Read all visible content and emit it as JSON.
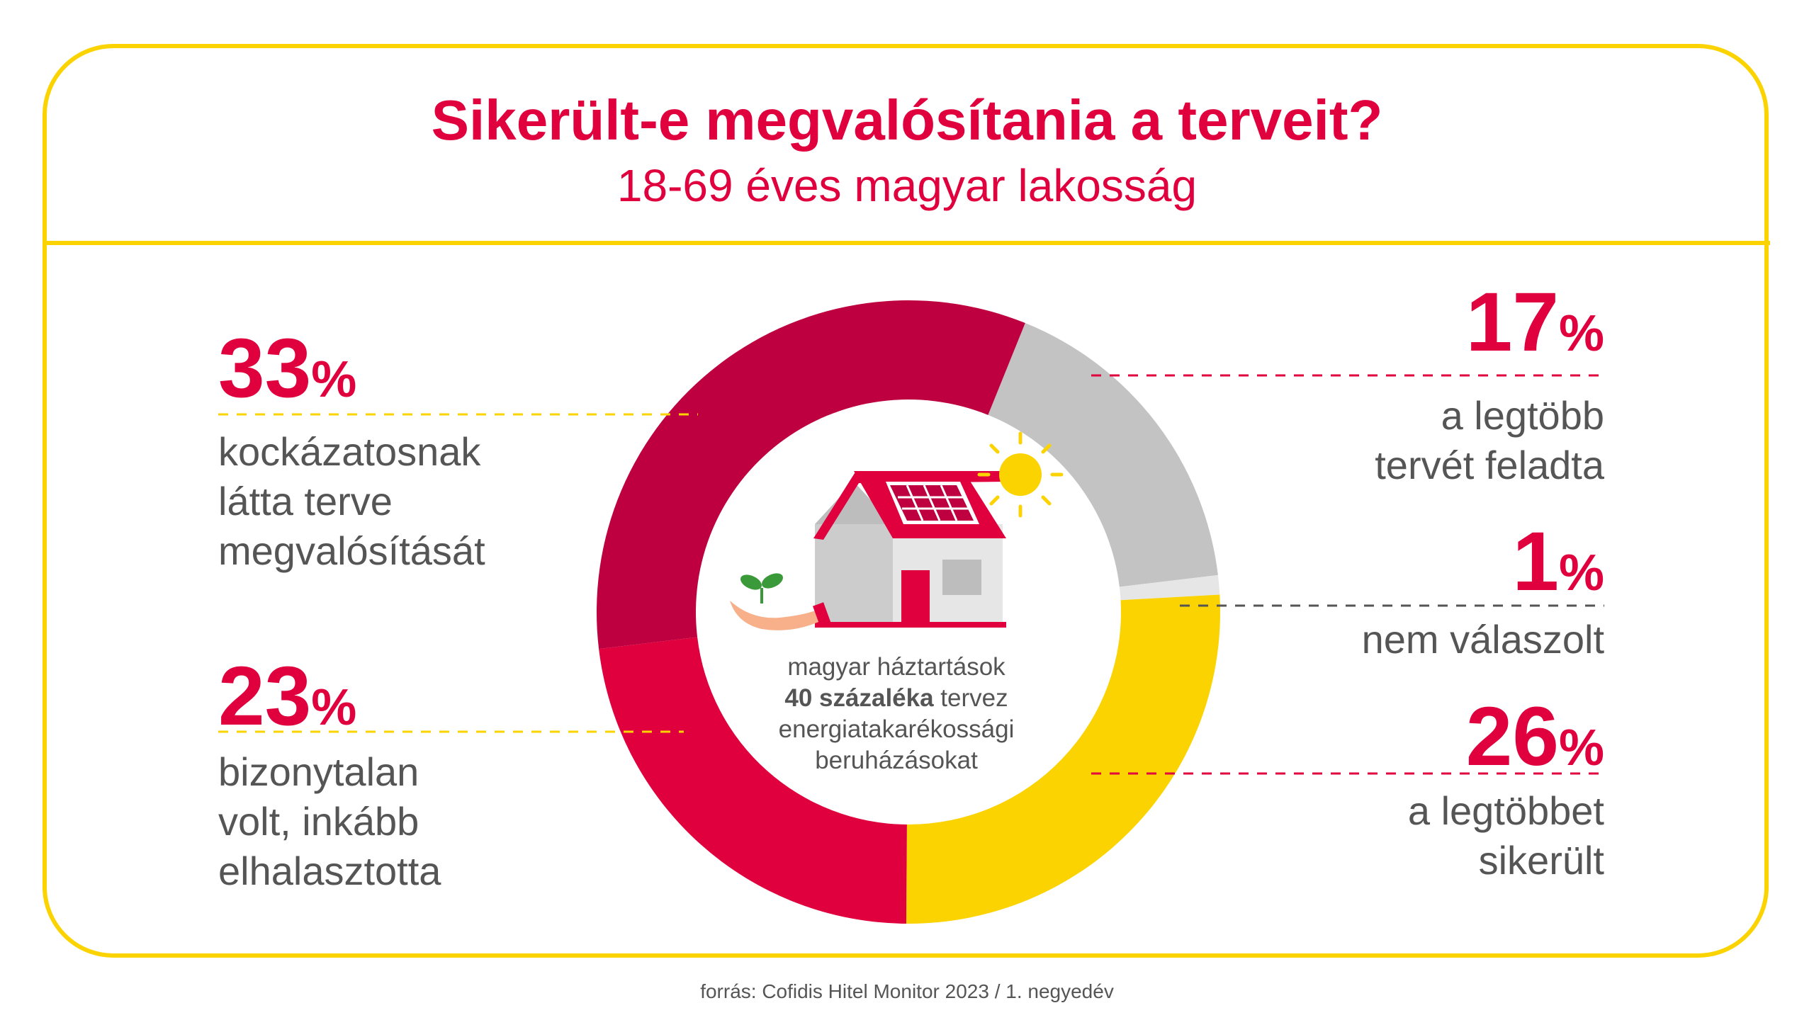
{
  "title": "Sikerült-e megvalósítania a terveit?",
  "subtitle": "18-69 éves magyar lakosság",
  "source": "forrás: Cofidis Hitel Monitor 2023 / 1. negyedév",
  "center": {
    "line1": "magyar háztartások",
    "bold": "40 százaléka",
    "line2_rest": " tervez",
    "line3": "energiatakarékossági",
    "line4": "beruházásokat"
  },
  "colors": {
    "accent": "#e0003e",
    "frame": "#fbd300"
  },
  "chart_data": {
    "type": "pie",
    "donut": true,
    "title": "Sikerült-e megvalósítania a terveit?",
    "subtitle": "18-69 éves magyar lakosság",
    "slices": [
      {
        "value": 17,
        "label": "a legtöbb tervét feladta",
        "lines": [
          "a legtöbb",
          "tervét feladta"
        ],
        "color": "#c3c3c3",
        "display": "17",
        "unit": "%"
      },
      {
        "value": 1,
        "label": "nem válaszolt",
        "lines": [
          "nem válaszolt"
        ],
        "color": "#e6e6e6",
        "display": "1",
        "unit": "%"
      },
      {
        "value": 26,
        "label": "a legtöbbet sikerült",
        "lines": [
          "a legtöbbet",
          "sikerült"
        ],
        "color": "#fbd300",
        "display": "26",
        "unit": "%"
      },
      {
        "value": 23,
        "label": "bizonytalan volt, inkább elhalasztotta",
        "lines": [
          "bizonytalan",
          "volt, inkább",
          "elhalasztotta"
        ],
        "color": "#e0003e",
        "display": "23",
        "unit": "%"
      },
      {
        "value": 33,
        "label": "kockázatosnak látta terve megvalósítását",
        "lines": [
          "kockázatosnak",
          "látta terve",
          "megvalósítását"
        ],
        "color": "#be0040",
        "display": "33",
        "unit": "%"
      }
    ]
  }
}
